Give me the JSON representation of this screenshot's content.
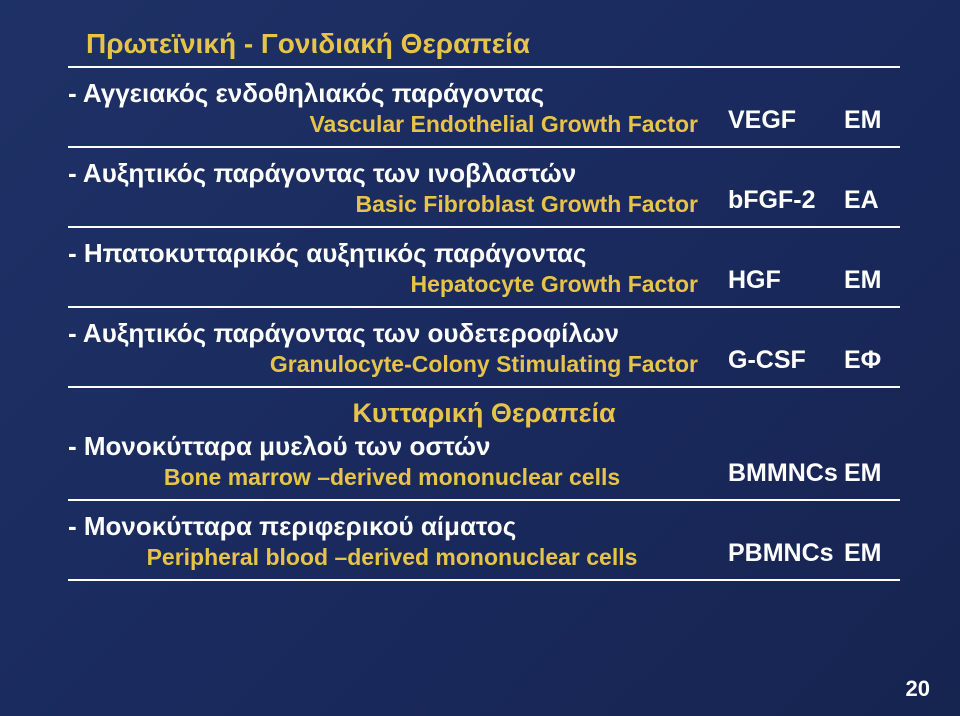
{
  "title1": "Πρωτεϊνική  -  Γονιδιακή  Θεραπεία",
  "title2": "Κυτταρική  Θεραπεία",
  "items": [
    {
      "main": "- Αγγειακός  ενδοθηλιακός  παράγοντας",
      "sub": "Vascular Endothelial Growth Factor",
      "abbrev": "VEGF",
      "type": "ΕΜ",
      "subCenter": false
    },
    {
      "main": "- Αυξητικός  παράγοντας  των  ινοβλαστών",
      "sub": "Basic Fibroblast Growth Factor",
      "abbrev": "bFGF-2",
      "type": "ΕΑ",
      "subCenter": false
    },
    {
      "main": "- Ηπατοκυτταρικός  αυξητικός  παράγοντας",
      "sub": "Hepatocyte Growth Factor",
      "abbrev": "HGF",
      "type": "ΕΜ",
      "subCenter": false
    },
    {
      "main": "- Αυξητικός  παράγοντας  των  ουδετεροφίλων",
      "sub": "Granulocyte-Colony Stimulating Factor",
      "abbrev": "G-CSF",
      "type": "ΕΦ",
      "subCenter": false
    }
  ],
  "items2": [
    {
      "main": "- Μονοκύτταρα  μυελού  των  οστών",
      "sub": "Bone marrow –derived mononuclear cells",
      "abbrev": "BMMNCs",
      "type": "ΕΜ",
      "subCenter": true
    },
    {
      "main": "- Μονοκύτταρα  περιφερικού  αίματος",
      "sub": "Peripheral blood –derived mononuclear cells",
      "abbrev": "PBMNCs",
      "type": "ΕΜ",
      "subCenter": true
    }
  ],
  "pageNum": "20"
}
